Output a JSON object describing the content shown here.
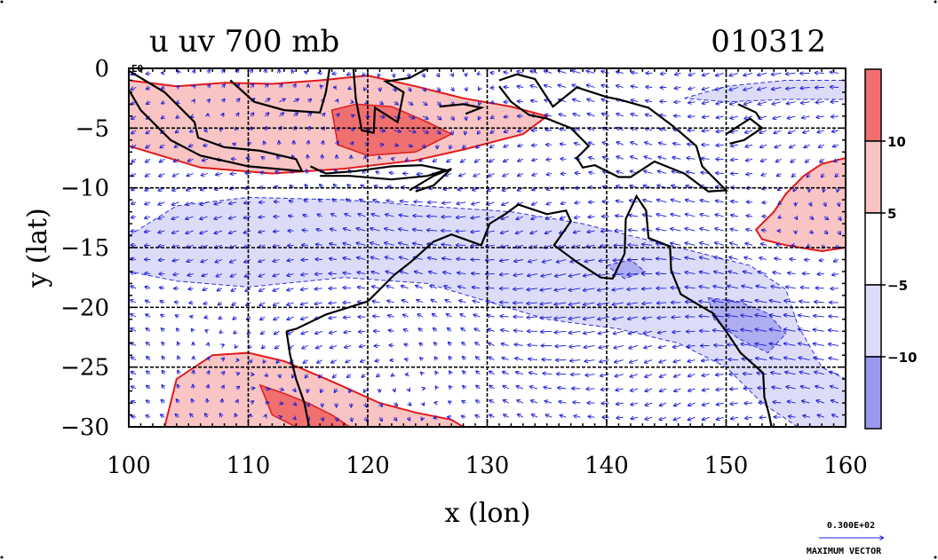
{
  "chart_data": {
    "type": "heatmap",
    "title_left": "u uv 700 mb",
    "title_right": "010312",
    "xlabel": "x (lon)",
    "ylabel": "y (lat)",
    "xlim": [
      100,
      160
    ],
    "ylim": [
      -30,
      0
    ],
    "x_ticks": [
      100,
      110,
      120,
      130,
      140,
      150,
      160
    ],
    "y_ticks": [
      0,
      -5,
      -10,
      -15,
      -20,
      -25,
      -30
    ],
    "grid": true,
    "corner_label": "EQ",
    "colorbar": {
      "levels": [
        -10,
        -5,
        5,
        10
      ],
      "tick_labels": [
        "10",
        "5",
        "−5",
        "−10"
      ],
      "colors": [
        "#f07070",
        "#f8c4c4",
        "#ffffff",
        "#dcdcf8",
        "#9999ee"
      ]
    },
    "positive_regions": [
      {
        "lon": 113,
        "lat": -3,
        "value": 10
      },
      {
        "lon": 123,
        "lat": -5,
        "value": 12
      },
      {
        "lon": 158,
        "lat": -13,
        "value": 8
      },
      {
        "lon": 112,
        "lat": -27,
        "value": 8
      },
      {
        "lon": 122,
        "lat": -28.5,
        "value": 7
      }
    ],
    "negative_regions": [
      {
        "lon": 120,
        "lat": -14,
        "value": -7
      },
      {
        "lon": 138,
        "lat": -18,
        "value": -8
      },
      {
        "lon": 152,
        "lat": -21,
        "value": -11
      },
      {
        "lon": 150,
        "lat": -1,
        "value": -6
      }
    ],
    "vector_reference": {
      "magnitude": "0.300E+02",
      "label": "MAXIMUM VECTOR"
    }
  }
}
